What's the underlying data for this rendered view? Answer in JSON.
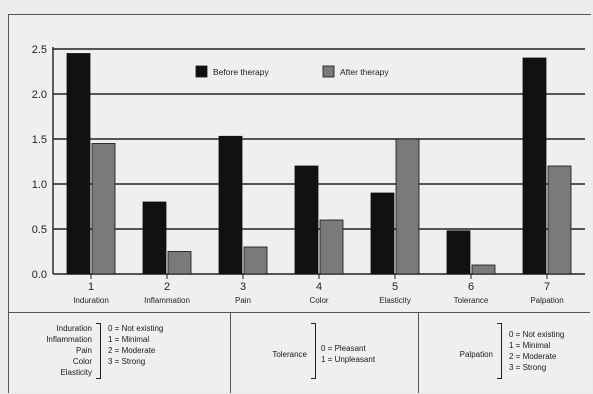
{
  "chart_data": {
    "type": "bar",
    "categories": [
      "1",
      "2",
      "3",
      "4",
      "5",
      "6",
      "7"
    ],
    "category_labels": [
      "Induration",
      "Inflammation",
      "Pain",
      "Color",
      "Elasticity",
      "Tolerance",
      "Palpation"
    ],
    "series": [
      {
        "name": "Before therapy",
        "color": "#111111",
        "values": [
          2.45,
          0.8,
          1.53,
          1.2,
          0.9,
          0.48,
          2.4
        ]
      },
      {
        "name": "After therapy",
        "color": "#7a7a7a",
        "values": [
          1.45,
          0.25,
          0.3,
          0.6,
          1.5,
          0.1,
          1.2
        ]
      }
    ],
    "ylim": [
      0,
      2.5
    ],
    "yticks": [
      "0.0",
      "0.5",
      "1.0",
      "1.5",
      "2.0",
      "2.5"
    ],
    "grid": true,
    "legend_position": "top-center"
  },
  "key": {
    "panel1": {
      "items": [
        "Induration",
        "Inflammation",
        "Pain",
        "Color",
        "Elasticity"
      ],
      "scale": [
        "0 = Not existing",
        "1 = Minimal",
        "2 = Moderate",
        "3 = Strong"
      ]
    },
    "panel2": {
      "items": [
        "Tolerance"
      ],
      "scale": [
        "0 = Pleasant",
        "1 = Unpleasant"
      ]
    },
    "panel3": {
      "items": [
        "Palpation"
      ],
      "scale": [
        "0 = Not existing",
        "1 = Minimal",
        "2 = Moderate",
        "3 = Strong"
      ]
    }
  }
}
